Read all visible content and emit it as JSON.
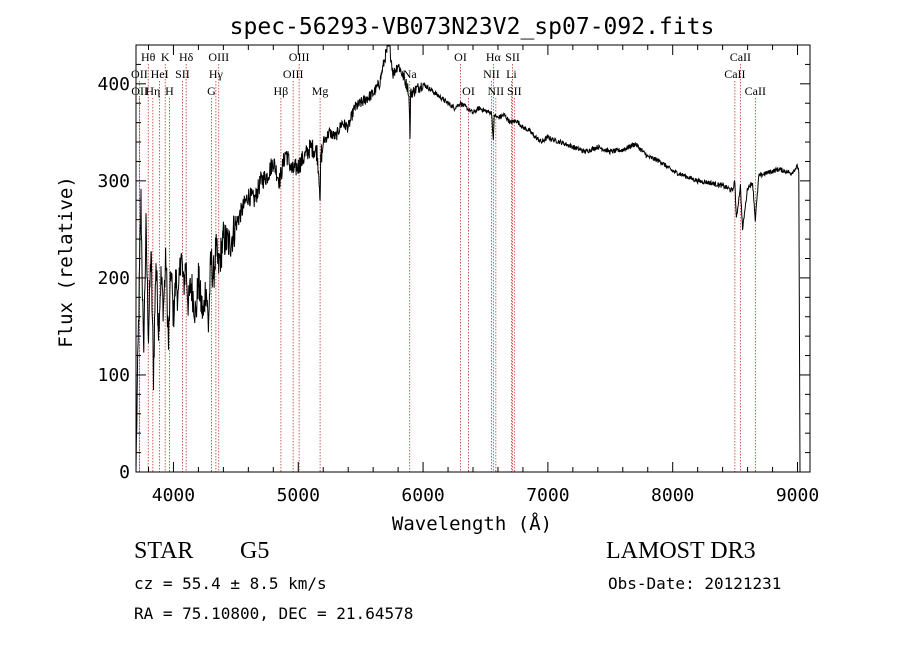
{
  "chart_data": {
    "type": "line",
    "title": "spec-56293-VB073N23V2_sp07-092.fits",
    "xlabel": "Wavelength (Å)",
    "ylabel": "Flux (relative)",
    "xlim": [
      3700,
      9100
    ],
    "ylim": [
      0,
      440
    ],
    "xticks": [
      4000,
      5000,
      6000,
      7000,
      8000,
      9000
    ],
    "yticks": [
      0,
      100,
      200,
      300,
      400
    ],
    "grid": false,
    "series": [
      {
        "name": "flux",
        "x": [
          3700,
          3710,
          3720,
          3740,
          3760,
          3780,
          3800,
          3820,
          3840,
          3860,
          3880,
          3900,
          3920,
          3940,
          3960,
          3980,
          4000,
          4020,
          4040,
          4060,
          4080,
          4100,
          4120,
          4140,
          4160,
          4180,
          4200,
          4220,
          4240,
          4260,
          4280,
          4300,
          4320,
          4340,
          4360,
          4380,
          4400,
          4450,
          4500,
          4550,
          4600,
          4650,
          4700,
          4750,
          4800,
          4850,
          4900,
          4950,
          5000,
          5050,
          5100,
          5150,
          5170,
          5175,
          5180,
          5185,
          5190,
          5200,
          5250,
          5300,
          5350,
          5400,
          5450,
          5500,
          5550,
          5600,
          5650,
          5700,
          5730,
          5760,
          5800,
          5850,
          5880,
          5890,
          5895,
          5900,
          5950,
          6000,
          6050,
          6100,
          6150,
          6200,
          6250,
          6300,
          6350,
          6400,
          6450,
          6500,
          6550,
          6563,
          6570,
          6600,
          6650,
          6700,
          6750,
          6800,
          6850,
          6900,
          6950,
          7000,
          7050,
          7100,
          7200,
          7300,
          7400,
          7500,
          7600,
          7700,
          7800,
          7900,
          8000,
          8100,
          8200,
          8300,
          8400,
          8480,
          8498,
          8510,
          8542,
          8560,
          8600,
          8640,
          8662,
          8690,
          8750,
          8800,
          8850,
          8900,
          8950,
          9000,
          9010,
          9020
        ],
        "values": [
          0,
          80,
          150,
          280,
          120,
          250,
          140,
          230,
          100,
          220,
          150,
          200,
          170,
          220,
          130,
          210,
          160,
          200,
          175,
          230,
          190,
          215,
          170,
          195,
          180,
          160,
          200,
          175,
          160,
          195,
          150,
          220,
          200,
          230,
          210,
          225,
          240,
          235,
          255,
          270,
          285,
          280,
          300,
          305,
          320,
          300,
          330,
          310,
          315,
          325,
          335,
          330,
          300,
          270,
          320,
          330,
          325,
          340,
          350,
          345,
          360,
          355,
          375,
          380,
          385,
          390,
          400,
          430,
          440,
          410,
          420,
          405,
          395,
          380,
          340,
          390,
          395,
          400,
          395,
          390,
          385,
          380,
          375,
          380,
          375,
          370,
          375,
          372,
          370,
          340,
          368,
          365,
          368,
          360,
          362,
          355,
          352,
          345,
          340,
          345,
          342,
          340,
          335,
          330,
          335,
          330,
          332,
          338,
          325,
          320,
          310,
          305,
          300,
          298,
          295,
          290,
          300,
          260,
          295,
          250,
          293,
          298,
          260,
          305,
          308,
          310,
          312,
          310,
          308,
          315,
          310,
          0
        ]
      }
    ],
    "lines": [
      {
        "label": "Hθ",
        "x": 3798,
        "row": 1
      },
      {
        "label": "OII",
        "x": 3727,
        "row": 2
      },
      {
        "label": "OII",
        "x": 3729,
        "row": 3
      },
      {
        "label": "Hη",
        "x": 3835,
        "row": 3
      },
      {
        "label": "HeI",
        "x": 3889,
        "row": 2
      },
      {
        "label": "K",
        "x": 3934,
        "row": 1
      },
      {
        "label": "H",
        "x": 3968,
        "row": 3
      },
      {
        "label": "SII",
        "x": 4072,
        "row": 2
      },
      {
        "label": "Hδ",
        "x": 4102,
        "row": 1
      },
      {
        "label": "OIII",
        "x": 4363,
        "row": 1
      },
      {
        "label": "Hγ",
        "x": 4340,
        "row": 2
      },
      {
        "label": "G",
        "x": 4305,
        "row": 3
      },
      {
        "label": "Hβ",
        "x": 4861,
        "row": 3
      },
      {
        "label": "OIII",
        "x": 5007,
        "row": 1
      },
      {
        "label": "OIII",
        "x": 4959,
        "row": 2
      },
      {
        "label": "Mg",
        "x": 5175,
        "row": 3
      },
      {
        "label": "Na",
        "x": 5893,
        "row": 2
      },
      {
        "label": "OI",
        "x": 6300,
        "row": 1
      },
      {
        "label": "OI",
        "x": 6364,
        "row": 3
      },
      {
        "label": "Hα",
        "x": 6563,
        "row": 1
      },
      {
        "label": "NII",
        "x": 6548,
        "row": 2
      },
      {
        "label": "NII",
        "x": 6583,
        "row": 3
      },
      {
        "label": "SII",
        "x": 6717,
        "row": 1
      },
      {
        "label": "Li",
        "x": 6708,
        "row": 2
      },
      {
        "label": "SII",
        "x": 6731,
        "row": 3
      },
      {
        "label": "CaII",
        "x": 8542,
        "row": 1
      },
      {
        "label": "CaII",
        "x": 8498,
        "row": 2
      },
      {
        "label": "CaII",
        "x": 8662,
        "row": 3
      }
    ],
    "colors": {
      "axes": "#000000",
      "spectrum": "#000000",
      "lines": "#c0392b"
    }
  },
  "info": {
    "class": "STAR",
    "subclass": "G5",
    "survey": "LAMOST DR3",
    "cz": "cz = 55.4 ± 8.5 km/s",
    "obsdate": "Obs-Date: 20121231",
    "radec": "RA =  75.10800, DEC =  21.64578"
  }
}
